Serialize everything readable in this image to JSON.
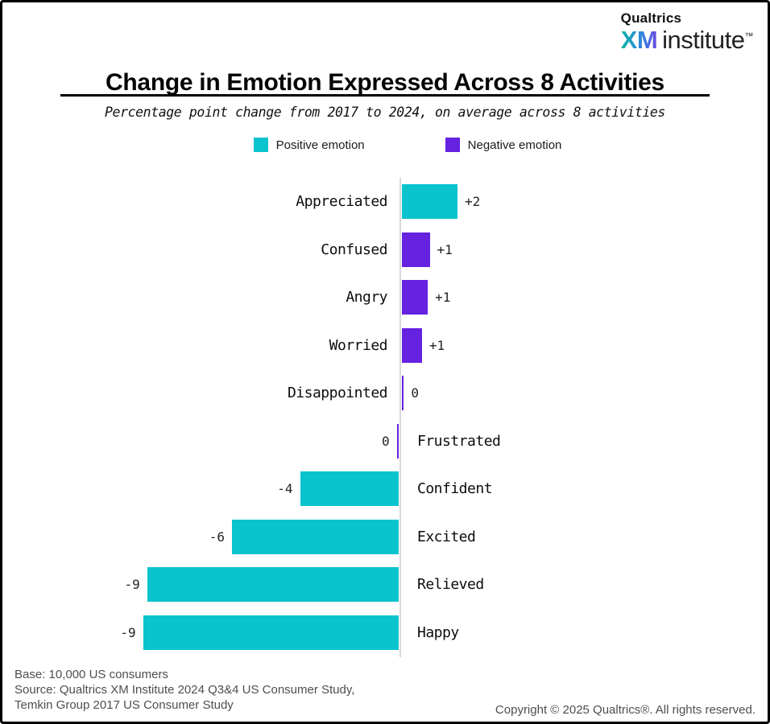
{
  "logo": {
    "company": "Qualtrics",
    "brand_bold": "XM",
    "brand_regular": "institute",
    "trademark": "™"
  },
  "header": {
    "title": "Change in Emotion Expressed Across 8 Activities",
    "subtitle": "Percentage point change from 2017 to 2024, on average across 8 activities"
  },
  "chart_data": {
    "type": "bar",
    "orientation": "horizontal",
    "title": "Change in Emotion Expressed Across 8 Activities",
    "subtitle": "Percentage point change from 2017 to 2024, on average across 8 activities",
    "categories": [
      "Appreciated",
      "Confused",
      "Angry",
      "Worried",
      "Disappointed",
      "Frustrated",
      "Confident",
      "Excited",
      "Relieved",
      "Happy"
    ],
    "values": [
      2,
      1,
      1,
      1,
      0,
      0,
      -4,
      -6,
      -9,
      -9
    ],
    "value_labels": [
      "+2",
      "+1",
      "+1",
      "+1",
      "0",
      "0",
      "-4",
      "-6",
      "-9",
      "-9"
    ],
    "emotion_type": [
      "positive",
      "negative",
      "negative",
      "negative",
      "negative",
      "negative",
      "positive",
      "positive",
      "positive",
      "positive"
    ],
    "bar_units_visual": [
      2.0,
      1.0,
      0.93,
      0.72,
      0.07,
      -0.07,
      -3.55,
      -6.0,
      -9.05,
      -9.2
    ],
    "xlim": [
      -10,
      3
    ],
    "grid": false,
    "axis_color": "#d9d9d9",
    "colors": {
      "positive": "#0AC3CD",
      "negative": "#6522E1"
    },
    "legend": [
      {
        "label": "Positive emotion",
        "color": "#0AC3CD"
      },
      {
        "label": "Negative emotion",
        "color": "#6522E1"
      }
    ],
    "legend_position": "top-center"
  },
  "footer": {
    "lines": [
      "Base: 10,000 US consumers",
      "Source: Qualtrics XM Institute 2024 Q3&4 US Consumer Study,",
      "Temkin Group 2017 US Consumer Study"
    ],
    "copyright": "Copyright © 2025 Qualtrics®. All rights reserved."
  }
}
